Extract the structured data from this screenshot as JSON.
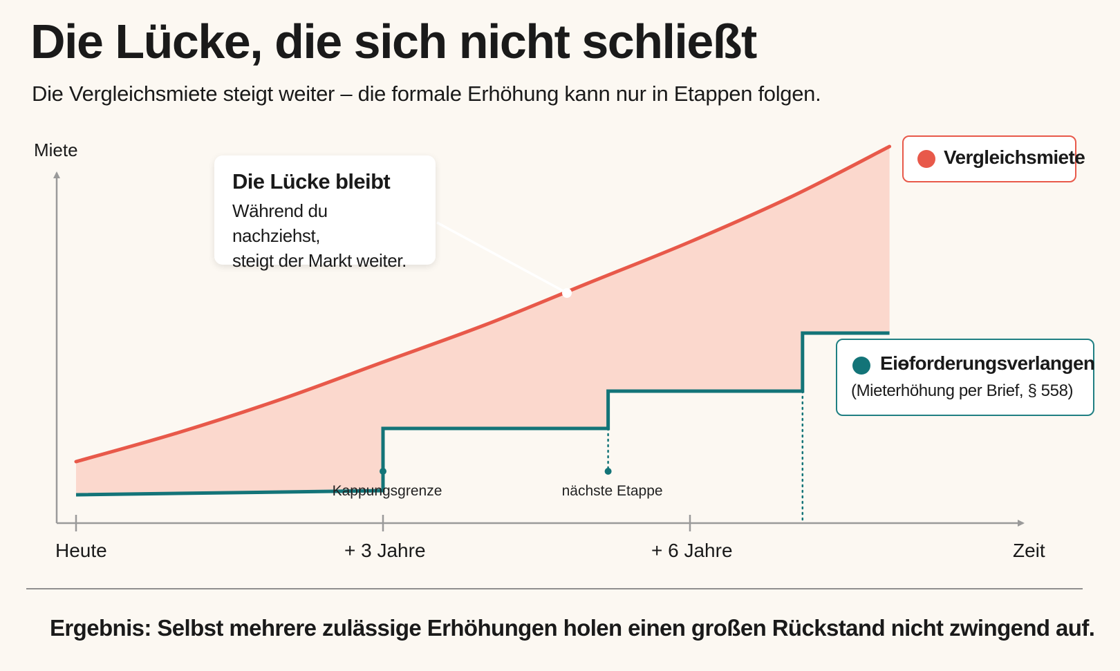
{
  "title": "Die Lücke, die sich nicht schließt",
  "subtitle": "Die Vergleichsmiete steigt weiter – die formale Erhöhung kann nur in Etappen folgen.",
  "chart_data": {
    "type": "line",
    "ylabel": "Miete",
    "xlabel": "Zeit",
    "x_ticks": [
      {
        "x": 0,
        "label": "Heute"
      },
      {
        "x": 3,
        "label": "+ 3 Jahre"
      },
      {
        "x": 6,
        "label": "+ 6 Jahre"
      }
    ],
    "xlim": [
      -0.2,
      9.2
    ],
    "ylim": [
      0,
      10
    ],
    "series": [
      {
        "name": "Vergleichsmiete",
        "color": "#e8594a",
        "style": "smooth",
        "x": [
          0,
          1,
          2,
          3,
          4,
          5,
          6,
          7,
          7.95
        ],
        "y": [
          3.2,
          3.9,
          4.7,
          5.6,
          6.5,
          7.5,
          8.5,
          9.6,
          10.8
        ]
      },
      {
        "name": "Eiɵforderungsverlangen",
        "color": "#137478",
        "style": "step",
        "x": [
          0,
          3,
          3,
          5.2,
          5.2,
          7.1,
          7.1,
          7.95
        ],
        "y": [
          2.4,
          2.5,
          4.0,
          4.0,
          4.9,
          4.9,
          6.3,
          6.3
        ]
      }
    ],
    "gap_fill_color": "#fbd4c9",
    "markers": [
      {
        "x": 3,
        "label": "Kappungsgrenze"
      },
      {
        "x": 5.2,
        "label": "nächste Etappe"
      },
      {
        "x": 7.1,
        "label": ""
      }
    ],
    "legend": {
      "red": {
        "label": "Vergleichsmiete"
      },
      "teal": {
        "label": "Eiɵforderungsverlangen",
        "sub": "(Mieterhöhung per Brief, § 558)"
      }
    },
    "annotation": {
      "title": "Die Lücke bleibt",
      "lines": [
        "Während du nachziehst,",
        "steigt der Markt weiter."
      ]
    }
  },
  "footer": "Ergebnis: Selbst mehrere zulässige Erhöhungen holen einen großen Rückstand nicht zwingend auf."
}
